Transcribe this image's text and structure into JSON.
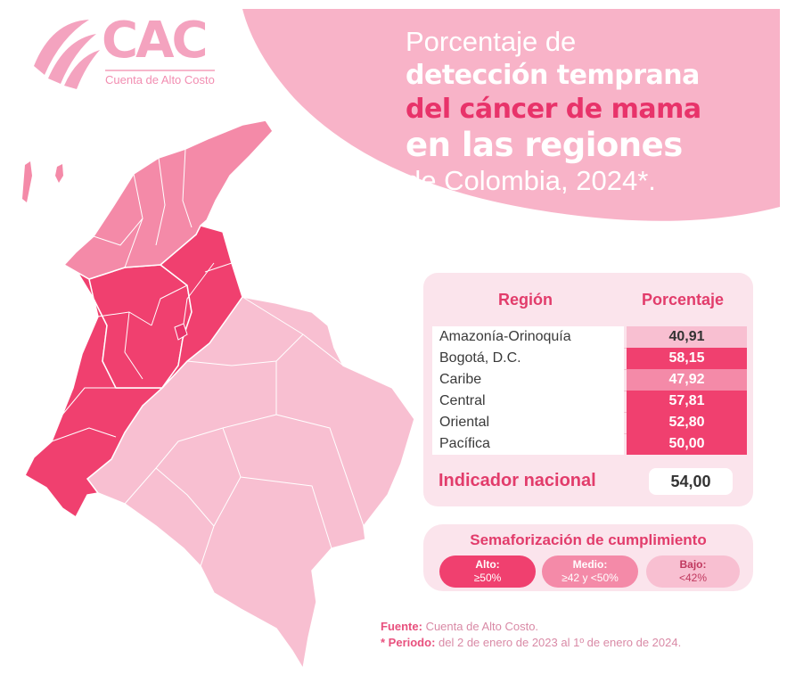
{
  "brand": {
    "logo_text": "CAC",
    "logo_subtitle": "Cuenta de Alto Costo"
  },
  "title": {
    "line1": "Porcentaje de",
    "line2": "detección temprana",
    "line3": "del cáncer de mama",
    "line4": "en las regiones",
    "line5": "de Colombia, 2024*."
  },
  "colors": {
    "alto": "#f0406f",
    "medio": "#f48aa8",
    "bajo": "#f8bfd1",
    "accent": "#e23c6b",
    "background_blob": "#f8b3c8"
  },
  "chart_data": {
    "type": "table",
    "columns": [
      "Región",
      "Porcentaje"
    ],
    "rows": [
      {
        "region": "Amazonía-Orinoquía",
        "value": "40,91",
        "level": "bajo"
      },
      {
        "region": "Bogotá, D.C.",
        "value": "58,15",
        "level": "alto"
      },
      {
        "region": "Caribe",
        "value": "47,92",
        "level": "medio"
      },
      {
        "region": "Central",
        "value": "57,81",
        "level": "alto"
      },
      {
        "region": "Oriental",
        "value": "52,80",
        "level": "alto"
      },
      {
        "region": "Pacífica",
        "value": "50,00",
        "level": "alto"
      }
    ],
    "national": {
      "label": "Indicador nacional",
      "value": "54,00"
    },
    "map_regions": [
      {
        "region": "Caribe",
        "level": "medio"
      },
      {
        "region": "Oriental",
        "level": "alto"
      },
      {
        "region": "Central",
        "level": "alto"
      },
      {
        "region": "Pacífica",
        "level": "alto"
      },
      {
        "region": "Bogotá, D.C.",
        "level": "alto"
      },
      {
        "region": "Amazonía-Orinoquía",
        "level": "bajo"
      }
    ]
  },
  "legend": {
    "title": "Semaforización de cumplimiento",
    "items": [
      {
        "name": "Alto:",
        "range": "≥50%"
      },
      {
        "name": "Medio:",
        "range": "≥42 y <50%"
      },
      {
        "name": "Bajo:",
        "range": "<42%"
      }
    ]
  },
  "footer": {
    "source_label": "Fuente:",
    "source_text": " Cuenta de Alto Costo.",
    "period_label": "* Periodo:",
    "period_text": " del 2 de enero de 2023 al 1º de enero de 2024."
  }
}
